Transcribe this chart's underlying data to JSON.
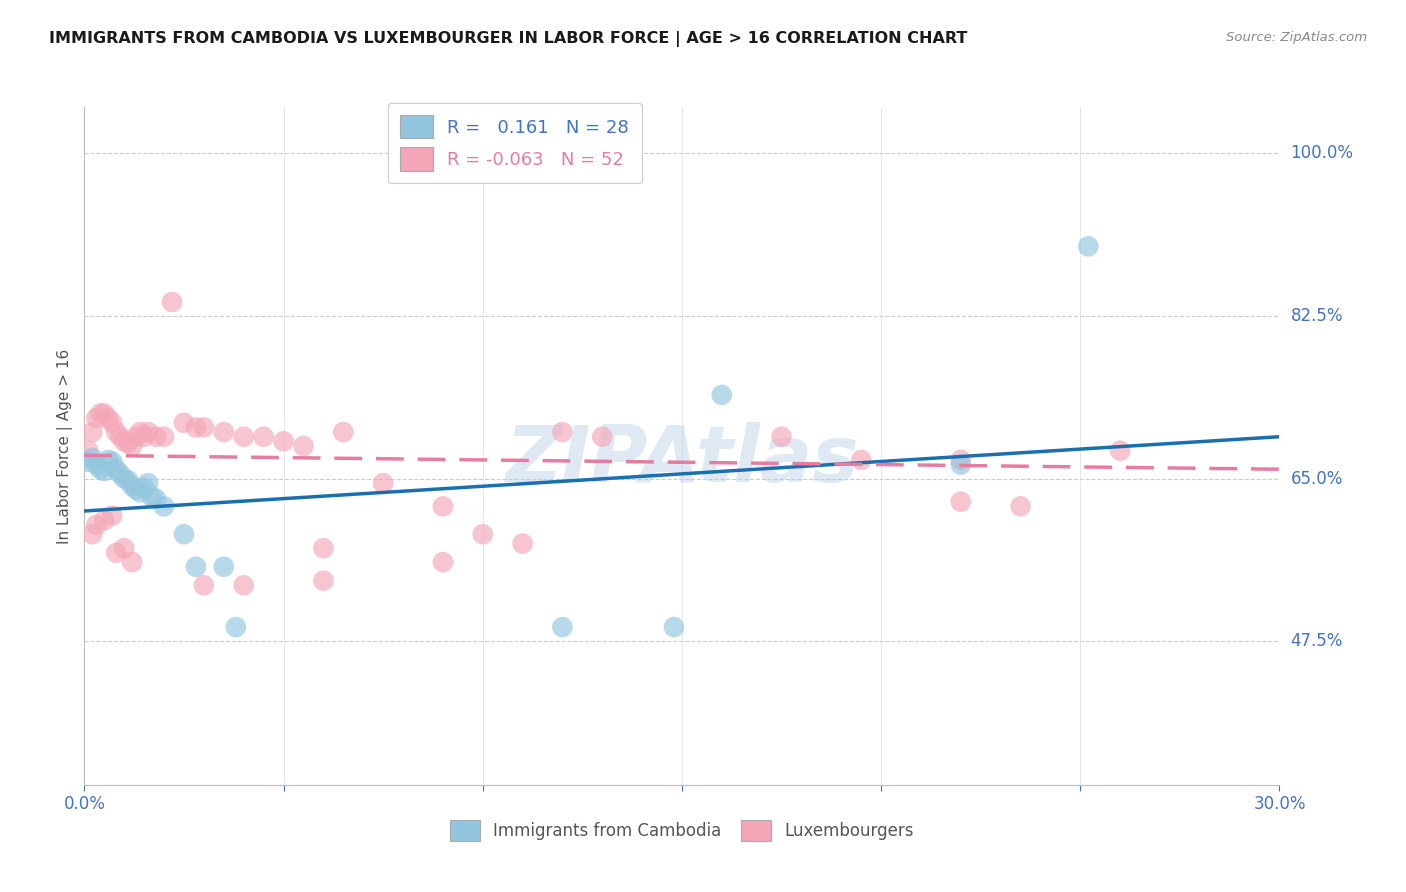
{
  "title": "IMMIGRANTS FROM CAMBODIA VS LUXEMBOURGER IN LABOR FORCE | AGE > 16 CORRELATION CHART",
  "source": "Source: ZipAtlas.com",
  "ylabel": "In Labor Force | Age > 16",
  "ytick_vals": [
    1.0,
    0.825,
    0.65,
    0.475
  ],
  "ytick_labels": [
    "100.0%",
    "82.5%",
    "65.0%",
    "47.5%"
  ],
  "legend_label1": "Immigrants from Cambodia",
  "legend_label2": "Luxembourgers",
  "legend_R1": "R =   0.161",
  "legend_N1": "N = 28",
  "legend_R2": "R = -0.063",
  "legend_N2": "N = 52",
  "color_blue": "#92c5de",
  "color_pink": "#f4a6b8",
  "color_blue_line": "#1a6faf",
  "color_pink_line": "#e87ca0",
  "watermark": "ZIPAtlas",
  "xlim": [
    0.0,
    0.3
  ],
  "ylim": [
    0.32,
    1.05
  ],
  "blue_points_x": [
    0.001,
    0.002,
    0.003,
    0.004,
    0.005,
    0.006,
    0.007,
    0.008,
    0.009,
    0.01,
    0.011,
    0.012,
    0.013,
    0.014,
    0.015,
    0.016,
    0.017,
    0.018,
    0.02,
    0.025,
    0.028,
    0.035,
    0.038,
    0.12,
    0.148,
    0.16,
    0.22,
    0.252
  ],
  "blue_points_y": [
    0.668,
    0.672,
    0.665,
    0.66,
    0.658,
    0.67,
    0.668,
    0.66,
    0.655,
    0.65,
    0.648,
    0.642,
    0.638,
    0.635,
    0.64,
    0.645,
    0.63,
    0.628,
    0.62,
    0.59,
    0.555,
    0.555,
    0.49,
    0.49,
    0.49,
    0.74,
    0.665,
    0.9
  ],
  "pink_points_x": [
    0.001,
    0.002,
    0.003,
    0.004,
    0.005,
    0.006,
    0.007,
    0.008,
    0.009,
    0.01,
    0.011,
    0.012,
    0.013,
    0.014,
    0.015,
    0.016,
    0.018,
    0.02,
    0.022,
    0.025,
    0.028,
    0.03,
    0.035,
    0.04,
    0.045,
    0.05,
    0.055,
    0.06,
    0.065,
    0.075,
    0.09,
    0.1,
    0.11,
    0.12,
    0.13,
    0.175,
    0.195,
    0.22,
    0.235,
    0.26,
    0.002,
    0.003,
    0.005,
    0.007,
    0.008,
    0.01,
    0.012,
    0.03,
    0.04,
    0.06,
    0.09,
    0.22
  ],
  "pink_points_y": [
    0.68,
    0.7,
    0.715,
    0.72,
    0.72,
    0.715,
    0.71,
    0.7,
    0.695,
    0.69,
    0.688,
    0.685,
    0.695,
    0.7,
    0.695,
    0.7,
    0.695,
    0.695,
    0.84,
    0.71,
    0.705,
    0.705,
    0.7,
    0.695,
    0.695,
    0.69,
    0.685,
    0.575,
    0.7,
    0.645,
    0.56,
    0.59,
    0.58,
    0.7,
    0.695,
    0.695,
    0.67,
    0.67,
    0.62,
    0.68,
    0.59,
    0.6,
    0.605,
    0.61,
    0.57,
    0.575,
    0.56,
    0.535,
    0.535,
    0.54,
    0.62,
    0.625
  ],
  "blue_line_x": [
    0.0,
    0.3
  ],
  "blue_line_y": [
    0.615,
    0.695
  ],
  "pink_line_x": [
    0.0,
    0.3
  ],
  "pink_line_y": [
    0.675,
    0.66
  ]
}
